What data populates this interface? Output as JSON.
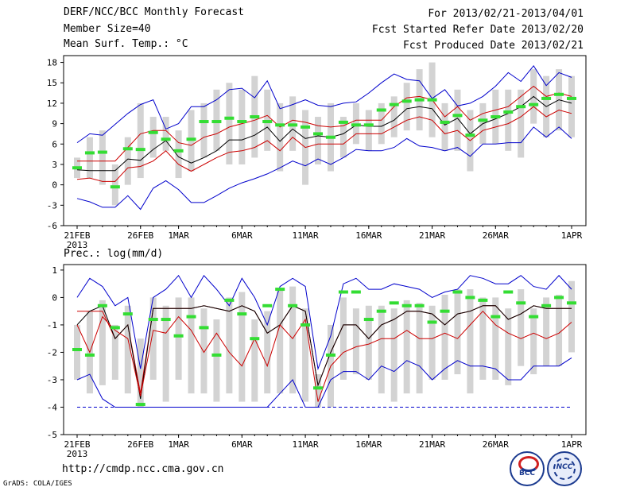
{
  "header": {
    "title": "DERF/NCC/BCC Monthly Forecast",
    "member_size": "Member Size=40",
    "variable": "Mean Surf. Temp.: °C",
    "forecast_range": "For 2013/02/21-2013/04/01",
    "start_date": "Fcst Started Refer Date 2013/02/20",
    "produced_date": "Fcst Produced Date 2013/02/21"
  },
  "footer": {
    "url": "http://cmdp.ncc.cma.gov.cn",
    "grads": "GrADS: COLA/IGES",
    "logo_left": "BCC",
    "logo_right": "NCC"
  },
  "colors": {
    "envelope": "#0000cc",
    "spread": "#cc0000",
    "mean": "#000000",
    "observed": "#33dd33",
    "box": "#d3d3d3"
  },
  "chart_data": [
    {
      "type": "line",
      "title": "Mean Surf. Temp.: °C",
      "x_tick_labels": [
        "21FEB",
        "26FEB",
        "1MAR",
        "6MAR",
        "11MAR",
        "16MAR",
        "21MAR",
        "26MAR",
        "1APR"
      ],
      "x_tick_days": [
        0,
        5,
        8,
        13,
        18,
        23,
        28,
        33,
        39
      ],
      "x_sublabel": "2013",
      "ylim": [
        -6,
        19
      ],
      "y_ticks": [
        -6,
        -3,
        0,
        3,
        6,
        9,
        12,
        15,
        18
      ],
      "series": [
        {
          "name": "max",
          "values": [
            6.2,
            7.5,
            7.3,
            8.9,
            10.5,
            11.8,
            12.5,
            8.2,
            9.0,
            11.5,
            11.5,
            12.5,
            14.0,
            14.2,
            12.8,
            15.3,
            11.2,
            11.8,
            12.5,
            11.7,
            11.5,
            12.0,
            12.2,
            13.5,
            15.0,
            16.3,
            15.5,
            15.3,
            12.7,
            14.0,
            11.6,
            12.0,
            13.0,
            14.5,
            16.5,
            15.2,
            17.5,
            14.6,
            16.5,
            15.8
          ]
        },
        {
          "name": "upper",
          "values": [
            3.5,
            3.5,
            3.5,
            3.5,
            5.5,
            7.5,
            8.0,
            8.0,
            6.2,
            5.8,
            7.0,
            7.5,
            8.5,
            9.0,
            9.5,
            10.2,
            8.5,
            9.5,
            9.2,
            8.7,
            8.5,
            8.7,
            9.5,
            9.5,
            9.5,
            11.5,
            12.8,
            13.0,
            12.5,
            10.0,
            11.5,
            9.5,
            10.5,
            11.0,
            11.5,
            13.0,
            14.5,
            13.0,
            13.5,
            13.0
          ]
        },
        {
          "name": "mean",
          "values": [
            2.2,
            2.1,
            2.1,
            2.1,
            3.8,
            3.6,
            5.2,
            6.5,
            4.1,
            3.2,
            4.0,
            5.0,
            6.6,
            6.6,
            7.3,
            8.5,
            6.4,
            8.2,
            6.8,
            7.2,
            7.0,
            7.5,
            8.8,
            8.6,
            8.6,
            9.5,
            11.2,
            11.5,
            11.2,
            8.8,
            9.8,
            7.5,
            9.0,
            9.7,
            10.5,
            11.5,
            13.0,
            11.5,
            12.5,
            12.0
          ]
        },
        {
          "name": "lower",
          "values": [
            0.8,
            1.0,
            0.5,
            0.5,
            2.5,
            2.7,
            3.5,
            5.0,
            3.0,
            2.0,
            3.0,
            4.0,
            4.8,
            5.0,
            5.5,
            6.5,
            5.0,
            7.0,
            5.5,
            6.0,
            6.0,
            6.0,
            7.5,
            7.5,
            7.5,
            8.5,
            9.5,
            10.0,
            9.5,
            7.5,
            8.0,
            6.5,
            8.0,
            8.5,
            9.0,
            10.0,
            11.5,
            10.0,
            11.0,
            10.5
          ]
        },
        {
          "name": "min",
          "values": [
            -2.0,
            -2.5,
            -3.3,
            -3.3,
            -1.6,
            -3.6,
            -0.5,
            0.6,
            -0.7,
            -2.6,
            -2.6,
            -1.6,
            -0.5,
            0.3,
            0.9,
            1.6,
            2.5,
            3.5,
            2.8,
            3.8,
            3.0,
            4.0,
            5.2,
            5.0,
            5.0,
            5.5,
            6.8,
            5.7,
            5.5,
            5.0,
            5.5,
            4.2,
            6.0,
            6.0,
            6.2,
            6.2,
            8.5,
            7.0,
            8.5,
            6.8
          ]
        },
        {
          "name": "observed",
          "values": [
            2.5,
            4.7,
            4.8,
            -0.3,
            5.3,
            5.2,
            7.7,
            6.7,
            5.0,
            6.7,
            9.3,
            9.3,
            9.8,
            9.3,
            10.0,
            9.3,
            8.8,
            8.8,
            8.5,
            7.5,
            7.0,
            9.2,
            8.8,
            8.8,
            11.0,
            11.8,
            12.3,
            12.5,
            12.5,
            9.2,
            10.2,
            7.3,
            9.5,
            10.0,
            10.7,
            11.5,
            11.8,
            12.7,
            13.3,
            12.7
          ]
        }
      ],
      "boxes": {
        "high": [
          4.0,
          7.0,
          8.0,
          3.0,
          7.0,
          12.0,
          10.0,
          10.0,
          8.0,
          11.0,
          12.0,
          14.0,
          15.0,
          14.0,
          16.0,
          14.0,
          12.0,
          13.0,
          11.0,
          10.0,
          12.0,
          10.0,
          12.0,
          11.0,
          12.0,
          13.0,
          15.0,
          17.0,
          18.0,
          12.0,
          14.0,
          11.0,
          12.0,
          14.0,
          14.0,
          14.0,
          17.0,
          16.0,
          17.0,
          16.0
        ],
        "low": [
          1.0,
          1.0,
          0.0,
          -3.0,
          0.0,
          1.0,
          4.0,
          5.0,
          1.0,
          2.0,
          4.0,
          5.0,
          3.0,
          3.0,
          4.0,
          5.0,
          2.0,
          5.0,
          0.0,
          3.0,
          2.0,
          4.0,
          6.0,
          5.0,
          6.0,
          7.0,
          8.0,
          8.0,
          7.0,
          5.0,
          5.0,
          2.0,
          6.0,
          6.0,
          5.0,
          4.0,
          9.0,
          7.0,
          8.0,
          7.0
        ]
      }
    },
    {
      "type": "line",
      "title": "Prec.: log(mm/d)",
      "x_tick_labels": [
        "21FEB",
        "26FEB",
        "1MAR",
        "6MAR",
        "11MAR",
        "16MAR",
        "21MAR",
        "26MAR",
        "1APR"
      ],
      "x_tick_days": [
        0,
        5,
        8,
        13,
        18,
        23,
        28,
        33,
        39
      ],
      "x_sublabel": "2013",
      "ylim": [
        -5,
        1.2
      ],
      "y_ticks": [
        -5,
        -4,
        -3,
        -2,
        -1,
        0,
        1
      ],
      "series": [
        {
          "name": "max",
          "values": [
            0.0,
            0.7,
            0.4,
            -0.3,
            0.0,
            -2.6,
            0.0,
            0.3,
            0.8,
            0.0,
            0.8,
            0.3,
            -0.3,
            0.7,
            0.0,
            -1.0,
            0.4,
            0.7,
            0.4,
            -2.6,
            -1.4,
            0.5,
            0.7,
            0.3,
            0.3,
            0.5,
            0.4,
            0.3,
            0.0,
            0.2,
            0.3,
            0.8,
            0.7,
            0.5,
            0.5,
            0.8,
            0.4,
            0.3,
            0.8,
            0.3
          ]
        },
        {
          "name": "upper",
          "values": [
            -0.5,
            -0.5,
            -0.5,
            -1.5,
            -1.0,
            -3.5,
            -0.4,
            -0.4,
            -0.4,
            -0.4,
            -0.3,
            -0.4,
            -0.5,
            -0.3,
            -0.5,
            -1.3,
            -1.0,
            -0.3,
            -0.5,
            -3.2,
            -2.0,
            -1.0,
            -1.0,
            -1.5,
            -1.0,
            -0.8,
            -0.5,
            -0.5,
            -0.6,
            -1.0,
            -0.6,
            -0.5,
            -0.3,
            -0.3,
            -0.8,
            -0.6,
            -0.3,
            -0.4,
            -0.4,
            -0.4
          ]
        },
        {
          "name": "mean",
          "values": [
            -1.0,
            -0.5,
            -0.3,
            -1.5,
            -1.0,
            -3.7,
            -0.4,
            -0.4,
            -0.4,
            -0.4,
            -0.3,
            -0.4,
            -0.5,
            -0.3,
            -0.5,
            -1.3,
            -1.0,
            -0.3,
            -0.5,
            -3.2,
            -2.0,
            -1.0,
            -1.0,
            -1.5,
            -1.0,
            -0.8,
            -0.5,
            -0.5,
            -0.6,
            -1.0,
            -0.6,
            -0.5,
            -0.3,
            -0.3,
            -0.8,
            -0.6,
            -0.3,
            -0.4,
            -0.4,
            -0.4
          ]
        },
        {
          "name": "lower",
          "values": [
            -1.0,
            -2.0,
            -0.7,
            -1.2,
            -1.5,
            -3.6,
            -1.2,
            -1.3,
            -0.7,
            -1.2,
            -2.0,
            -1.3,
            -2.0,
            -2.5,
            -1.5,
            -2.5,
            -1.0,
            -1.5,
            -0.8,
            -3.8,
            -2.5,
            -2.0,
            -1.8,
            -1.7,
            -1.5,
            -1.5,
            -1.2,
            -1.5,
            -1.5,
            -1.3,
            -1.5,
            -1.0,
            -0.5,
            -1.0,
            -1.3,
            -1.5,
            -1.3,
            -1.5,
            -1.3,
            -0.9
          ]
        },
        {
          "name": "min",
          "values": [
            -3.0,
            -2.8,
            -3.7,
            -4.0,
            -4.0,
            -4.0,
            -4.0,
            -4.0,
            -4.0,
            -4.0,
            -4.0,
            -4.0,
            -4.0,
            -4.0,
            -4.0,
            -4.0,
            -3.5,
            -3.0,
            -4.0,
            -4.0,
            -3.0,
            -2.7,
            -2.7,
            -3.0,
            -2.5,
            -2.7,
            -2.3,
            -2.5,
            -3.0,
            -2.6,
            -2.3,
            -2.5,
            -2.5,
            -2.6,
            -3.0,
            -3.0,
            -2.5,
            -2.5,
            -2.5,
            -2.2
          ]
        },
        {
          "name": "observed",
          "values": [
            -1.9,
            -2.1,
            -0.3,
            -1.1,
            -0.6,
            -3.9,
            -0.8,
            -0.8,
            -1.4,
            -0.7,
            -1.1,
            -2.1,
            -0.1,
            -0.6,
            -1.5,
            -0.3,
            0.3,
            -0.3,
            -1.0,
            -3.3,
            -2.1,
            0.2,
            0.2,
            -0.8,
            -0.5,
            -0.2,
            -0.3,
            -0.3,
            -0.9,
            -0.5,
            0.2,
            0.0,
            -0.1,
            -0.7,
            0.2,
            -0.2,
            -0.7,
            -0.3,
            0.0,
            -0.2
          ]
        }
      ],
      "boxes": {
        "high": [
          -1.0,
          -0.5,
          -0.1,
          -1.0,
          -0.3,
          -1.5,
          0.0,
          -0.3,
          0.0,
          0.0,
          -0.4,
          -0.8,
          0.0,
          0.2,
          -0.8,
          -0.5,
          0.3,
          0.4,
          -0.4,
          -2.8,
          -1.0,
          0.0,
          -0.4,
          -0.3,
          -0.3,
          -0.4,
          -0.1,
          -0.2,
          -0.3,
          0.1,
          0.3,
          0.3,
          0.0,
          0.0,
          -0.4,
          0.3,
          -0.4,
          0.0,
          0.1,
          0.6
        ],
        "low": [
          -3.0,
          -3.5,
          -3.2,
          -3.0,
          -3.5,
          -4.0,
          -3.0,
          -3.8,
          -3.0,
          -3.5,
          -3.5,
          -3.8,
          -3.5,
          -3.8,
          -3.8,
          -3.5,
          -3.5,
          -3.5,
          -3.8,
          -4.0,
          -4.0,
          -3.0,
          -2.8,
          -3.0,
          -3.5,
          -3.8,
          -3.5,
          -3.5,
          -3.0,
          -3.0,
          -2.8,
          -3.5,
          -3.0,
          -3.0,
          -3.2,
          -2.5,
          -2.8,
          -2.5,
          -2.5,
          -2.0
        ]
      },
      "floor_line": -4.0
    }
  ]
}
